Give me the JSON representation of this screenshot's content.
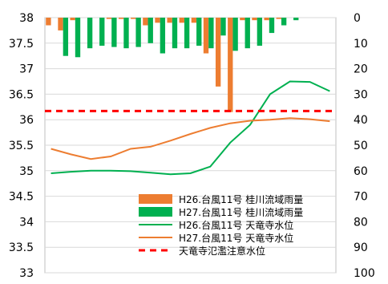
{
  "chart_data": {
    "type": "bar+line",
    "x_count": 24,
    "left_axis": {
      "ylim": [
        33,
        38
      ],
      "ticks": [
        "33",
        "33.5",
        "34",
        "34.5",
        "35",
        "35.5",
        "36",
        "36.5",
        "37",
        "37.5",
        "38"
      ]
    },
    "right_axis": {
      "ylim": [
        0,
        100
      ],
      "inverted": true,
      "ticks": [
        "0",
        "10",
        "20",
        "30",
        "40",
        "50",
        "60",
        "70",
        "80",
        "90",
        "100"
      ]
    },
    "grid": true,
    "legend_position": "bottom-right",
    "series": [
      {
        "name": "H26.台風11号 桂川流域雨量",
        "kind": "bar",
        "axis": "right",
        "color": "#ed7d31",
        "values": [
          3,
          5,
          1,
          0,
          0,
          0.5,
          0.5,
          0.5,
          3,
          2,
          2,
          2,
          2,
          14,
          27,
          37,
          1,
          1,
          1,
          0.5,
          0,
          0,
          0,
          0
        ]
      },
      {
        "name": "H27.台風11号 桂川流域雨量",
        "kind": "bar",
        "axis": "right",
        "color": "#00b050",
        "values": [
          0,
          15,
          15.5,
          12,
          11,
          11.5,
          12,
          11.5,
          10,
          14,
          12,
          12,
          11,
          12,
          7,
          13,
          12,
          11,
          6,
          3,
          1,
          0,
          0,
          0
        ]
      },
      {
        "name": "H26.台風11号 天竜寺水位",
        "kind": "line",
        "axis": "left",
        "color": "#00b050",
        "values": [
          34.95,
          34.98,
          35.0,
          35.0,
          34.99,
          34.96,
          34.93,
          34.95,
          35.08,
          35.55,
          35.9,
          36.5,
          36.75,
          36.74,
          36.56
        ]
      },
      {
        "name": "H27.台風11号 天竜寺水位",
        "kind": "line",
        "axis": "left",
        "color": "#ed7d31",
        "values": [
          35.43,
          35.32,
          35.23,
          35.28,
          35.43,
          35.47,
          35.59,
          35.72,
          35.84,
          35.93,
          35.98,
          36.0,
          36.03,
          36.01,
          35.97
        ]
      },
      {
        "name": "天竜寺氾濫注意水位",
        "kind": "hline",
        "axis": "left",
        "color": "#ff0000",
        "dashed": true,
        "value": 36.17
      }
    ]
  }
}
